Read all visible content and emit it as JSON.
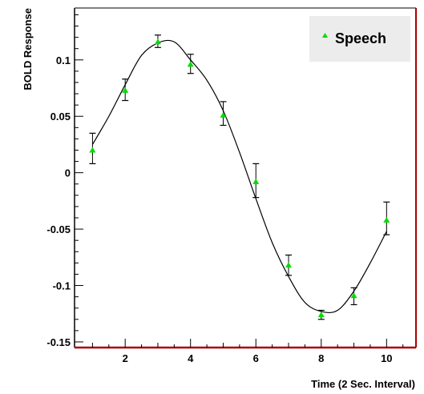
{
  "chart_data": {
    "type": "line",
    "xlabel": "Time (2 Sec. Interval)",
    "ylabel": "BOLD Response",
    "xlim": [
      0.45,
      10.9
    ],
    "ylim": [
      -0.155,
      0.146
    ],
    "x_ticks": [
      2,
      4,
      6,
      8,
      10
    ],
    "x_tick_labels": [
      "2",
      "4",
      "6",
      "8",
      "10"
    ],
    "y_ticks": [
      -0.15,
      -0.1,
      -0.05,
      0,
      0.05,
      0.1
    ],
    "y_tick_labels": [
      "-0.15",
      "-0.1",
      "-0.05",
      "0",
      "0.05",
      "0.1"
    ],
    "grid": false,
    "legend_position": "top-right",
    "series": [
      {
        "name": "Speech",
        "marker": "triangle",
        "marker_color": "#00dd00",
        "x": [
          1,
          2,
          3,
          4,
          5,
          6,
          7,
          8,
          9,
          10
        ],
        "y": [
          0.02,
          0.073,
          0.116,
          0.096,
          0.051,
          -0.008,
          -0.082,
          -0.126,
          -0.109,
          -0.042
        ],
        "err_low": [
          0.012,
          0.009,
          0.005,
          0.008,
          0.009,
          0.014,
          0.009,
          0.004,
          0.008,
          0.013
        ],
        "err_high": [
          0.015,
          0.01,
          0.006,
          0.009,
          0.012,
          0.016,
          0.009,
          0.004,
          0.007,
          0.016
        ]
      }
    ],
    "fit_curve": {
      "x": [
        1,
        1.5,
        2,
        2.5,
        3,
        3.5,
        4,
        4.5,
        5,
        5.5,
        6,
        6.5,
        7,
        7.5,
        8,
        8.5,
        9,
        9.5,
        10
      ],
      "y": [
        0.025,
        0.05,
        0.078,
        0.104,
        0.115,
        0.116,
        0.1,
        0.082,
        0.055,
        0.018,
        -0.023,
        -0.062,
        -0.092,
        -0.115,
        -0.123,
        -0.122,
        -0.105,
        -0.08,
        -0.052
      ]
    },
    "colors": {
      "curve": "#000000",
      "marker": "#00dd00",
      "error_bar": "#000000",
      "axis_frame": "#000000",
      "axis_bottom": "#aa0000",
      "axis_right": "#aa0000",
      "legend_bg": "#ececec"
    }
  }
}
